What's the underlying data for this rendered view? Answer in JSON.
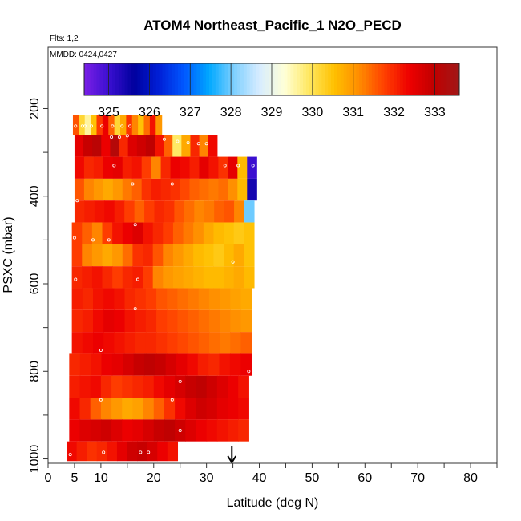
{
  "chart_data": {
    "type": "heatmap",
    "title": "ATOM4 Northeast_Pacific_1 N2O_PECD",
    "flights_label": "Flts: 1,2",
    "dates_label": "MMDD: 0424,0427",
    "xlabel": "Latitude (deg N)",
    "ylabel": "PSXC (mbar)",
    "xlim": [
      0,
      85
    ],
    "ylim": [
      1010,
      60
    ],
    "y_reversed": true,
    "x_ticks": [
      0,
      5,
      10,
      20,
      30,
      40,
      50,
      60,
      70,
      80
    ],
    "y_ticks": [
      200,
      400,
      600,
      800,
      1000
    ],
    "colorbar": {
      "ticks": [
        325,
        326,
        327,
        328,
        329,
        330,
        331,
        332,
        333
      ],
      "range": [
        324.4,
        333.6
      ],
      "colors": [
        "#7a1fe6",
        "#3a0fd0",
        "#00009e",
        "#0020d8",
        "#0058ff",
        "#00a8ff",
        "#7fd0ff",
        "#d6ecff",
        "#ffffd8",
        "#ffe860",
        "#ffc000",
        "#ff8c00",
        "#ff4000",
        "#ee0000",
        "#c00000",
        "#a01818"
      ]
    },
    "arrow_marker_lat": 34.8,
    "bands": [
      {
        "p_top": 215,
        "p_bot": 260,
        "x_start": 4.7,
        "x_end": 21.5,
        "values": [
          331.6,
          330.2,
          329.6,
          330.5,
          331.8,
          332.4,
          331.5,
          330.2,
          330.8,
          331.9,
          331.2,
          330.5,
          331.4,
          332.2,
          331.0
        ]
      },
      {
        "p_top": 260,
        "p_bot": 310,
        "x_start": 5.0,
        "x_end": 32.0,
        "values": [
          332.5,
          332.9,
          333.1,
          332.4,
          333.2,
          332.0,
          332.6,
          332.8,
          333.0,
          332.2,
          331.5,
          329.9,
          330.8,
          332.0,
          331.2,
          332.3
        ]
      },
      {
        "p_top": 310,
        "p_bot": 360,
        "x_start": 5.0,
        "x_end": 39.5,
        "values": [
          332.3,
          332.0,
          332.1,
          332.4,
          332.5,
          332.1,
          332.2,
          331.8,
          331.2,
          332.0,
          332.4,
          332.3,
          332.1,
          332.5,
          332.2,
          331.9,
          332.5,
          330.6,
          325.0
        ]
      },
      {
        "p_top": 360,
        "p_bot": 410,
        "x_start": 5.0,
        "x_end": 39.5,
        "values": [
          331.6,
          331.2,
          331.0,
          330.8,
          331.0,
          331.3,
          331.5,
          331.9,
          332.1,
          332.0,
          331.9,
          331.7,
          331.5,
          331.4,
          331.3,
          331.4,
          331.1,
          330.6,
          325.4
        ]
      },
      {
        "p_top": 410,
        "p_bot": 460,
        "x_start": 5.0,
        "x_end": 39.0,
        "values": [
          332.0,
          332.1,
          332.2,
          332.3,
          332.1,
          331.8,
          331.5,
          331.8,
          332.0,
          331.9,
          331.6,
          331.4,
          331.2,
          331.3,
          331.5,
          331.6,
          331.2,
          328.0
        ]
      },
      {
        "p_top": 460,
        "p_bot": 510,
        "x_start": 4.5,
        "x_end": 39.0,
        "values": [
          331.8,
          331.5,
          331.2,
          331.8,
          332.2,
          332.4,
          332.6,
          332.2,
          332.0,
          331.8,
          331.5,
          331.3,
          331.1,
          330.8,
          330.6,
          330.5,
          330.4,
          330.5
        ]
      },
      {
        "p_top": 510,
        "p_bot": 560,
        "x_start": 4.5,
        "x_end": 39.0,
        "values": [
          331.8,
          331.2,
          331.0,
          330.8,
          331.0,
          331.4,
          331.9,
          332.0,
          331.6,
          331.2,
          331.0,
          330.8,
          330.6,
          330.5,
          330.4,
          330.6,
          330.8,
          330.5
        ]
      },
      {
        "p_top": 560,
        "p_bot": 610,
        "x_start": 4.5,
        "x_end": 39.0,
        "values": [
          332.0,
          332.1,
          332.2,
          332.0,
          331.8,
          332.0,
          332.1,
          331.8,
          331.2,
          331.0,
          330.9,
          330.8,
          330.7,
          330.6,
          330.6,
          330.7,
          330.8,
          330.6
        ]
      },
      {
        "p_top": 610,
        "p_bot": 660,
        "x_start": 4.5,
        "x_end": 38.5,
        "values": [
          332.1,
          332.0,
          332.2,
          332.3,
          332.2,
          332.0,
          331.9,
          331.8,
          331.6,
          331.5,
          331.4,
          331.3,
          331.2,
          331.1,
          331.0,
          330.9,
          330.8
        ]
      },
      {
        "p_top": 660,
        "p_bot": 710,
        "x_start": 4.5,
        "x_end": 38.5,
        "values": [
          332.0,
          332.1,
          332.3,
          332.5,
          332.4,
          332.2,
          332.1,
          332.0,
          331.8,
          331.7,
          331.6,
          331.5,
          331.4,
          331.3,
          331.2,
          331.1,
          331.0
        ]
      },
      {
        "p_top": 710,
        "p_bot": 760,
        "x_start": 4.5,
        "x_end": 38.5,
        "values": [
          332.2,
          332.3,
          332.4,
          332.3,
          332.2,
          332.1,
          332.0,
          332.0,
          331.9,
          331.8,
          331.7,
          331.6,
          331.5,
          331.4,
          331.3,
          331.4,
          331.5
        ]
      },
      {
        "p_top": 760,
        "p_bot": 810,
        "x_start": 4.0,
        "x_end": 38.5,
        "values": [
          332.0,
          332.1,
          332.2,
          332.4,
          332.5,
          332.7,
          332.9,
          333.0,
          332.9,
          332.7,
          332.5,
          332.3,
          332.1,
          332.0,
          332.2,
          332.3,
          332.4
        ]
      },
      {
        "p_top": 810,
        "p_bot": 860,
        "x_start": 4.0,
        "x_end": 38.0,
        "values": [
          332.1,
          332.2,
          332.3,
          332.0,
          331.8,
          331.9,
          332.0,
          332.1,
          332.3,
          332.5,
          332.7,
          332.9,
          333.0,
          332.8,
          332.6,
          332.4,
          332.2
        ]
      },
      {
        "p_top": 860,
        "p_bot": 910,
        "x_start": 4.0,
        "x_end": 38.0,
        "values": [
          332.3,
          332.0,
          331.5,
          331.2,
          331.0,
          330.8,
          330.9,
          331.2,
          331.5,
          331.9,
          332.3,
          332.6,
          332.8,
          332.7,
          332.5,
          332.4,
          332.3
        ]
      },
      {
        "p_top": 910,
        "p_bot": 960,
        "x_start": 4.0,
        "x_end": 38.0,
        "values": [
          332.4,
          332.6,
          332.7,
          332.8,
          332.6,
          332.4,
          332.5,
          332.7,
          332.9,
          333.0,
          332.8,
          332.6,
          332.4,
          332.3,
          332.2,
          332.1,
          332.0
        ]
      },
      {
        "p_top": 960,
        "p_bot": 1005,
        "x_start": 3.5,
        "x_end": 24.5,
        "values": [
          332.3,
          332.1,
          331.9,
          332.0,
          332.2,
          332.5,
          332.8,
          332.9,
          332.7,
          332.4,
          332.2
        ]
      }
    ],
    "points": [
      [
        5.2,
        240
      ],
      [
        6.5,
        240
      ],
      [
        7.0,
        240
      ],
      [
        8.2,
        240
      ],
      [
        10.2,
        240
      ],
      [
        12.2,
        240
      ],
      [
        14.0,
        240
      ],
      [
        15.5,
        240
      ],
      [
        12.0,
        265
      ],
      [
        13.5,
        265
      ],
      [
        15.0,
        262
      ],
      [
        22.0,
        270
      ],
      [
        24.5,
        275
      ],
      [
        26.5,
        278
      ],
      [
        28.5,
        280
      ],
      [
        30.0,
        280
      ],
      [
        12.5,
        330
      ],
      [
        33.5,
        330
      ],
      [
        36.0,
        330
      ],
      [
        38.8,
        330
      ],
      [
        16.0,
        372
      ],
      [
        23.5,
        372
      ],
      [
        5.5,
        410
      ],
      [
        16.5,
        465
      ],
      [
        5.0,
        495
      ],
      [
        8.5,
        500
      ],
      [
        11.5,
        500
      ],
      [
        17.0,
        590
      ],
      [
        35.0,
        550
      ],
      [
        5.2,
        590
      ],
      [
        16.5,
        657
      ],
      [
        10.0,
        752
      ],
      [
        25.0,
        823
      ],
      [
        10.0,
        865
      ],
      [
        23.5,
        865
      ],
      [
        25.0,
        935
      ],
      [
        38.0,
        800
      ],
      [
        10.5,
        985
      ],
      [
        17.5,
        985
      ],
      [
        19.0,
        985
      ],
      [
        4.2,
        990
      ]
    ]
  }
}
